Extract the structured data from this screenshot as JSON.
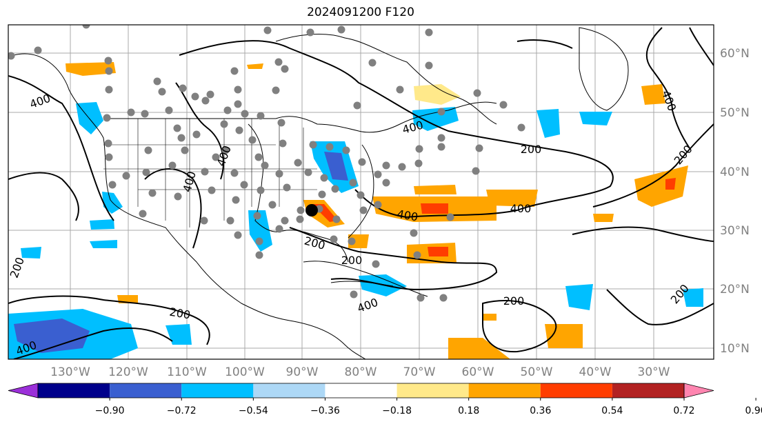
{
  "title": "2024091200 F120",
  "longitude_labels": [
    "130°W",
    "120°W",
    "110°W",
    "100°W",
    "90°W",
    "80°W",
    "70°W",
    "60°W",
    "50°W",
    "40°W",
    "30°W"
  ],
  "latitude_labels": [
    "60°N",
    "50°N",
    "40°N",
    "30°N",
    "20°N",
    "10°N"
  ],
  "colorbar": {
    "ticks": [
      "−0.90",
      "−0.72",
      "−0.54",
      "−0.36",
      "−0.18",
      "0.18",
      "0.36",
      "0.54",
      "0.72",
      "0.90"
    ],
    "colors": [
      "#9b30d9",
      "#00008b",
      "#3a5fd0",
      "#00bfff",
      "#add8f6",
      "#ffffff",
      "#ffe98a",
      "#ffa500",
      "#ff3d00",
      "#b22222",
      "#ff85b0"
    ]
  },
  "contour_labels": [
    "400",
    "400",
    "400",
    "400",
    "400",
    "400",
    "400",
    "200",
    "200",
    "200",
    "200",
    "200",
    "200",
    "200",
    "200",
    "400",
    "400"
  ],
  "colors": {
    "contour": "#000000",
    "grid": "#a9a9a9",
    "station": "#808080",
    "marker": "#000000"
  }
}
